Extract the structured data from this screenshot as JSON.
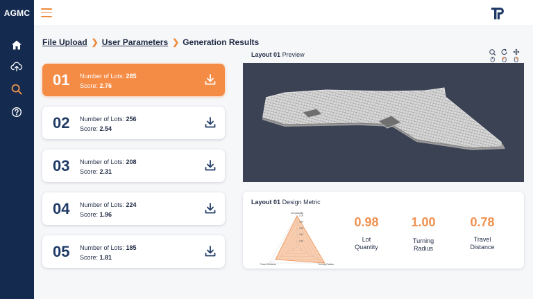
{
  "app": {
    "brand": "AGMC"
  },
  "nav": {
    "items": [
      "home-icon",
      "cloud-upload-icon",
      "search-icon",
      "help-icon"
    ],
    "active": "search-icon"
  },
  "colors": {
    "accent": "#f58c46",
    "sidebar": "#142b4f",
    "preview_bg": "#3a4253",
    "metric_value": "#f0914f"
  },
  "breadcrumb": {
    "file_upload": "File Upload",
    "user_parameters": "User Parameters",
    "generation_results": "Generation Results"
  },
  "results": [
    {
      "id": "01",
      "lots_label": "Number of Lots:",
      "lots": "285",
      "score_label": "Score:",
      "score": "2.76",
      "active": true
    },
    {
      "id": "02",
      "lots_label": "Number of Lots:",
      "lots": "256",
      "score_label": "Score:",
      "score": "2.54",
      "active": false
    },
    {
      "id": "03",
      "lots_label": "Number of Lots:",
      "lots": "208",
      "score_label": "Score:",
      "score": "2.31",
      "active": false
    },
    {
      "id": "04",
      "lots_label": "Number of Lots:",
      "lots": "224",
      "score_label": "Score:",
      "score": "1.96",
      "active": false
    },
    {
      "id": "05",
      "lots_label": "Number of Lots:",
      "lots": "185",
      "score_label": "Score:",
      "score": "1.81",
      "active": false
    }
  ],
  "preview": {
    "layout_word": "Layout",
    "layout_id": "01",
    "suffix": "Preview",
    "controls": [
      "zoom-icon",
      "rotate-icon",
      "pan-icon"
    ]
  },
  "metric": {
    "layout_word": "Layout",
    "layout_id": "01",
    "suffix": "Design Metric",
    "radar": {
      "axes": [
        "Lot Quantity",
        "Turning Radius",
        "Travel Distance"
      ],
      "ticks": [
        "1.00",
        "0.80",
        "0.60",
        "0.40",
        "0.20"
      ],
      "values": [
        0.98,
        1.0,
        0.78
      ]
    },
    "items": [
      {
        "value": "0.98",
        "label_line1": "Lot",
        "label_line2": "Quantity"
      },
      {
        "value": "1.00",
        "label_line1": "Turning",
        "label_line2": "Radius"
      },
      {
        "value": "0.78",
        "label_line1": "Travel",
        "label_line2": "Distance"
      }
    ]
  }
}
